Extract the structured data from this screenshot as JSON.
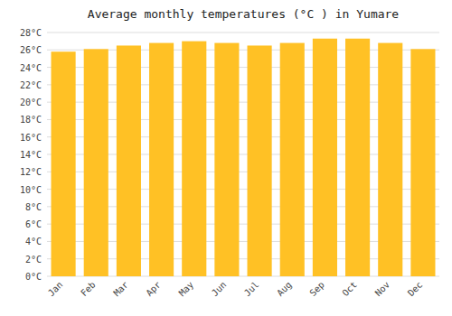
{
  "chart_data": {
    "type": "bar",
    "title": "Average monthly temperatures (°C ) in Yumare",
    "categories": [
      "Jan",
      "Feb",
      "Mar",
      "Apr",
      "May",
      "Jun",
      "Jul",
      "Aug",
      "Sep",
      "Oct",
      "Nov",
      "Dec"
    ],
    "values": [
      25.8,
      26.1,
      26.5,
      26.8,
      27.0,
      26.8,
      26.5,
      26.8,
      27.3,
      27.3,
      26.8,
      26.1
    ],
    "color": "#FFC125",
    "ylim": [
      0,
      28
    ],
    "yticks": [
      {
        "value": 0,
        "label": "0°C"
      },
      {
        "value": 2,
        "label": "2°C"
      },
      {
        "value": 4,
        "label": "4°C"
      },
      {
        "value": 6,
        "label": "6°C"
      },
      {
        "value": 8,
        "label": "8°C"
      },
      {
        "value": 10,
        "label": "10°C"
      },
      {
        "value": 12,
        "label": "12°C"
      },
      {
        "value": 14,
        "label": "14°C"
      },
      {
        "value": 16,
        "label": "16°C"
      },
      {
        "value": 18,
        "label": "18°C"
      },
      {
        "value": 20,
        "label": "20°C"
      },
      {
        "value": 22,
        "label": "22°C"
      },
      {
        "value": 24,
        "label": "24°C"
      },
      {
        "value": 26,
        "label": "26°C"
      },
      {
        "value": 28,
        "label": "28°C"
      }
    ],
    "grid": true
  }
}
